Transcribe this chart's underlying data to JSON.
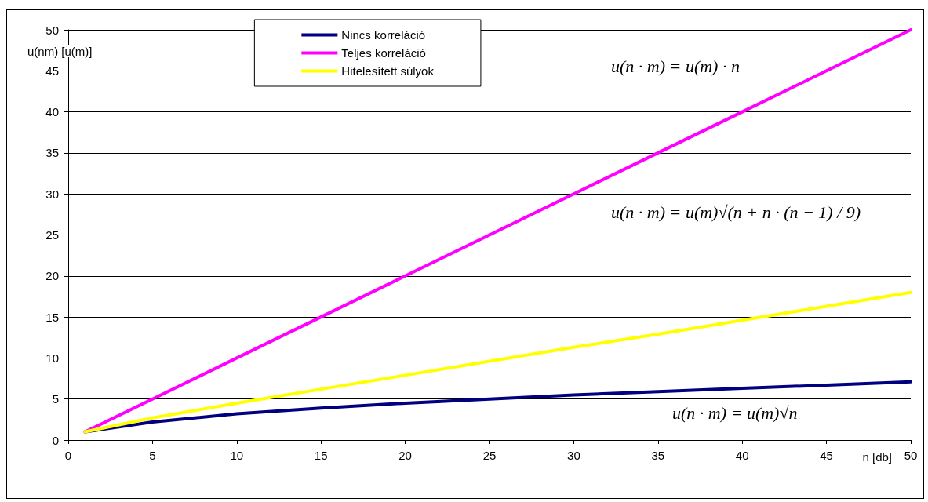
{
  "chart_data": {
    "type": "line",
    "xlabel": "n [db]",
    "ylabel": "u(nm) [u(m)]",
    "x": [
      1,
      5,
      10,
      15,
      20,
      25,
      30,
      35,
      40,
      45,
      50
    ],
    "series": [
      {
        "name": "Nincs korreláció",
        "color": "#000080",
        "values": [
          1,
          2.2,
          3.2,
          3.9,
          4.5,
          5,
          5.5,
          5.9,
          6.3,
          6.7,
          7.1
        ]
      },
      {
        "name": "Teljes korreláció",
        "color": "#ff00ff",
        "values": [
          1,
          5,
          10,
          15,
          20,
          25,
          30,
          35,
          40,
          45,
          50
        ]
      },
      {
        "name": "Hitelesített súlyok",
        "color": "#ffff00",
        "values": [
          1,
          2.7,
          4.5,
          6.2,
          7.9,
          9.6,
          11.3,
          12.9,
          14.6,
          16.3,
          18
        ]
      }
    ],
    "annotations": [
      "u(n · m) = u(m) · n",
      "u(n · m) = u(m)√(n + n · (n − 1) / 9)",
      "u(n · m) = u(m)√n"
    ],
    "xlim": [
      0,
      50
    ],
    "xticks": [
      0,
      5,
      10,
      15,
      20,
      25,
      30,
      35,
      40,
      45,
      50
    ],
    "ylim": [
      0,
      50
    ],
    "yticks": [
      0,
      5,
      10,
      15,
      20,
      25,
      30,
      35,
      40,
      45,
      50
    ],
    "grid": "y",
    "legend": "top",
    "marker": "none",
    "line_style": "solid"
  }
}
